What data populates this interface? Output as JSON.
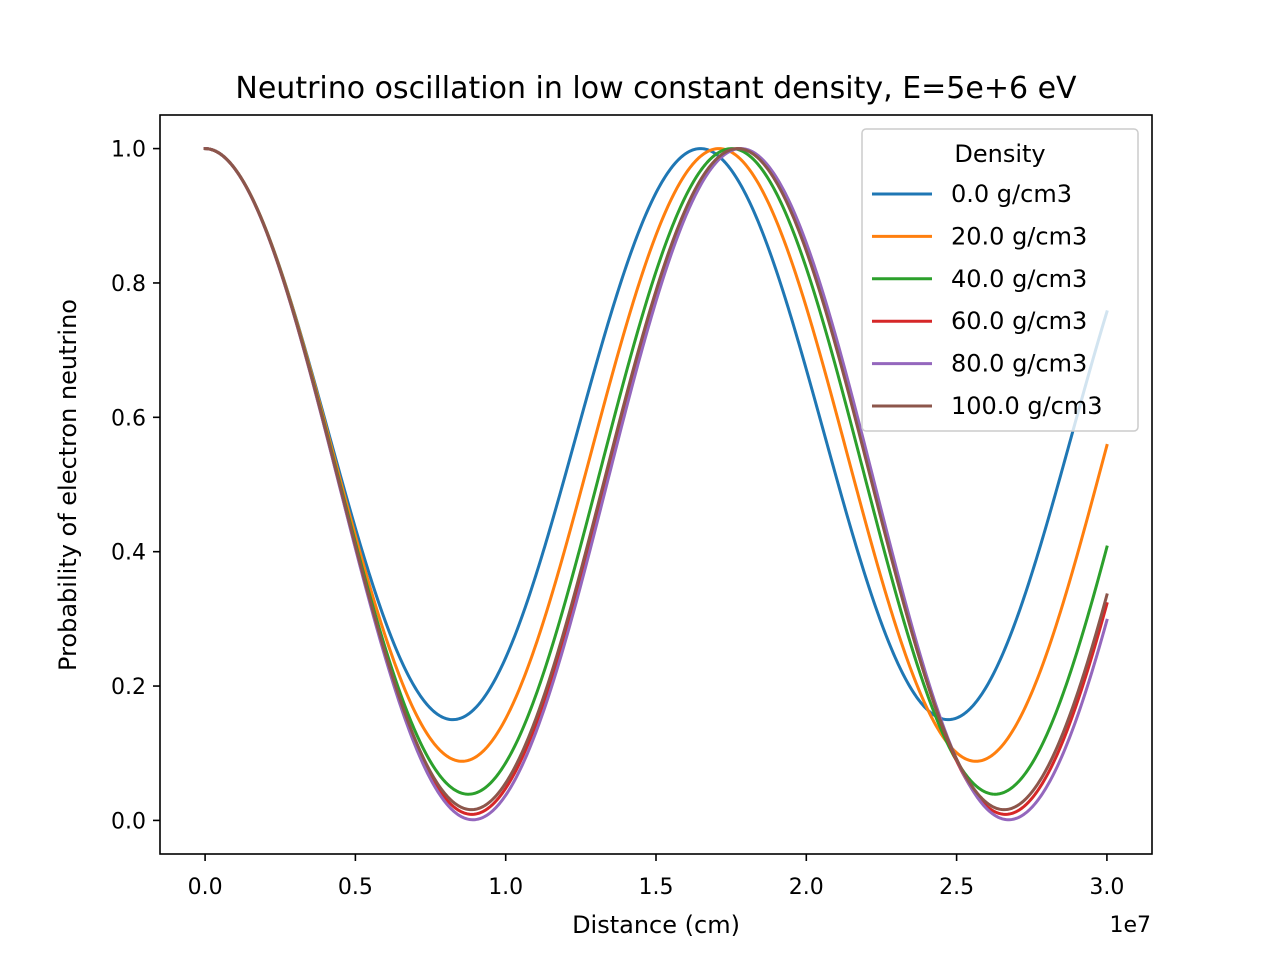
{
  "chart_data": {
    "type": "line",
    "title": "Neutrino oscillation in low constant density, E=5e+6 eV",
    "xlabel": "Distance (cm)",
    "ylabel": "Probability of electron neutrino",
    "x_offset_label": "1e7",
    "xlim": [
      -0.15,
      3.15
    ],
    "ylim": [
      -0.05,
      1.05
    ],
    "x_ticks": [
      0.0,
      0.5,
      1.0,
      1.5,
      2.0,
      2.5,
      3.0
    ],
    "x_tick_labels": [
      "0.0",
      "0.5",
      "1.0",
      "1.5",
      "2.0",
      "2.5",
      "3.0"
    ],
    "y_ticks": [
      0.0,
      0.2,
      0.4,
      0.6,
      0.8,
      1.0
    ],
    "y_tick_labels": [
      "0.0",
      "0.2",
      "0.4",
      "0.6",
      "0.8",
      "1.0"
    ],
    "x_units": "1e7 cm",
    "x_range": [
      0.0,
      3.0
    ],
    "legend_title": "Density",
    "legend_location": "upper right",
    "series": [
      {
        "name": "0.0 g/cm3",
        "color": "#1f77b4",
        "min_prob": 0.15,
        "period": 1.648
      },
      {
        "name": "20.0 g/cm3",
        "color": "#ff7f0e",
        "min_prob": 0.088,
        "period": 1.7095
      },
      {
        "name": "40.0 g/cm3",
        "color": "#2ca02c",
        "min_prob": 0.039,
        "period": 1.752
      },
      {
        "name": "60.0 g/cm3",
        "color": "#d62728",
        "min_prob": 0.009,
        "period": 1.775
      },
      {
        "name": "80.0 g/cm3",
        "color": "#9467bd",
        "min_prob": 0.001,
        "period": 1.782
      },
      {
        "name": "100.0 g/cm3",
        "color": "#8c564b",
        "min_prob": 0.016,
        "period": 1.772
      }
    ]
  }
}
